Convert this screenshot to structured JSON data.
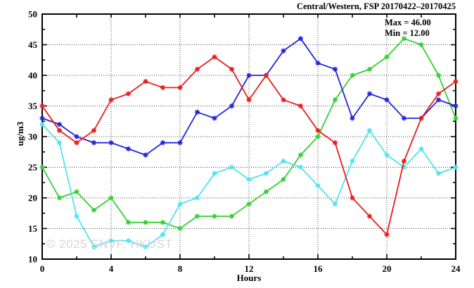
{
  "title": "Central/Western, FSP 20170422–20170425",
  "annotations": {
    "max": "Max = 46.00",
    "min": "Min = 12.00"
  },
  "watermark": "© 2025 ENVF, HKUST",
  "chart_data": {
    "type": "line",
    "title": "Central/Western, FSP 20170422–20170425",
    "xlabel": "Hours",
    "ylabel": "ug/m3",
    "xlim": [
      0,
      24
    ],
    "ylim": [
      10,
      50
    ],
    "x_major_ticks": [
      0,
      4,
      8,
      12,
      16,
      20,
      24
    ],
    "x_minor_tick_step": 2,
    "y_major_ticks": [
      10,
      15,
      20,
      25,
      30,
      35,
      40,
      45,
      50
    ],
    "y_minor_tick_step": 2.5,
    "grid": "dotted at major ticks",
    "legend_position": "none",
    "stat_max": 46.0,
    "stat_min": 12.0,
    "x": [
      0,
      1,
      2,
      3,
      4,
      5,
      6,
      7,
      8,
      9,
      10,
      11,
      12,
      13,
      14,
      15,
      16,
      17,
      18,
      19,
      20,
      21,
      22,
      23,
      24
    ],
    "series": [
      {
        "name": "green",
        "color": "#33d133",
        "values": [
          25,
          20,
          21,
          18,
          20,
          16,
          16,
          16,
          15,
          17,
          17,
          17,
          19,
          21,
          23,
          27,
          30,
          36,
          40,
          41,
          43,
          46,
          45,
          40,
          33
        ]
      },
      {
        "name": "cyan",
        "color": "#4fe3f0",
        "values": [
          32,
          29,
          17,
          12,
          13,
          13,
          12,
          14,
          19,
          20,
          24,
          25,
          23,
          24,
          26,
          25,
          22,
          19,
          26,
          31,
          27,
          25,
          28,
          24,
          25
        ]
      },
      {
        "name": "blue",
        "color": "#2424dd",
        "values": [
          33,
          32,
          30,
          29,
          29,
          28,
          27,
          29,
          29,
          34,
          33,
          35,
          40,
          40,
          44,
          46,
          42,
          41,
          33,
          37,
          36,
          33,
          33,
          36,
          35
        ]
      },
      {
        "name": "red",
        "color": "#ea1c1c",
        "values": [
          35,
          31,
          29,
          31,
          36,
          37,
          39,
          38,
          38,
          41,
          43,
          41,
          36,
          40,
          36,
          35,
          31,
          29,
          20,
          17,
          14,
          26,
          33,
          37,
          39
        ]
      }
    ]
  }
}
